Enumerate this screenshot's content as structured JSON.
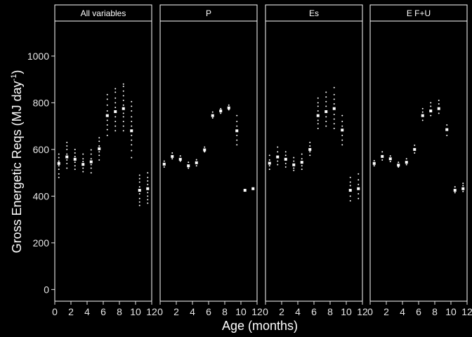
{
  "chart_data": {
    "type": "scatter",
    "xlabel": "Age (months)",
    "ylabel_main": "Gross Energetic Reqs (MJ day",
    "ylabel_sup": "-1",
    "ylabel_close": ")",
    "xlim": [
      0,
      12
    ],
    "ylim": [
      -50,
      1150
    ],
    "x_ticks": [
      0,
      2,
      4,
      6,
      8,
      10,
      12
    ],
    "y_ticks": [
      0,
      200,
      400,
      600,
      800,
      1000
    ],
    "colors": {
      "background": "#000000",
      "points": "#ffffff",
      "text": "#e6e6e6",
      "border": "#ffffff"
    },
    "panels": [
      {
        "label": "All variables",
        "series": [
          {
            "x": 0.5,
            "mean": 540,
            "values": [
              480,
              495,
              515,
              530,
              550,
              565,
              580
            ]
          },
          {
            "x": 1.5,
            "mean": 568,
            "values": [
              520,
              540,
              555,
              580,
              600,
              615,
              630
            ]
          },
          {
            "x": 2.5,
            "mean": 558,
            "values": [
              515,
              530,
              545,
              570,
              585,
              600
            ]
          },
          {
            "x": 3.5,
            "mean": 536,
            "values": [
              505,
              520,
              548,
              560,
              580
            ]
          },
          {
            "x": 4.5,
            "mean": 547,
            "values": [
              500,
              520,
              535,
              560,
              580,
              598
            ]
          },
          {
            "x": 5.5,
            "mean": 603,
            "values": [
              555,
              575,
              590,
              615,
              635,
              650
            ]
          },
          {
            "x": 6.5,
            "mean": 745,
            "values": [
              660,
              685,
              705,
              725,
              765,
              790,
              815,
              835
            ]
          },
          {
            "x": 7.5,
            "mean": 762,
            "values": [
              680,
              700,
              720,
              740,
              780,
              800,
              820,
              845,
              860
            ]
          },
          {
            "x": 8.5,
            "mean": 775,
            "values": [
              680,
              700,
              720,
              740,
              755,
              790,
              810,
              830,
              850,
              870,
              880
            ]
          },
          {
            "x": 9.5,
            "mean": 680,
            "values": [
              565,
              595,
              620,
              640,
              660,
              700,
              720,
              740,
              765,
              785,
              805
            ]
          },
          {
            "x": 10.5,
            "mean": 425,
            "values": [
              360,
              375,
              390,
              410,
              440,
              460,
              475,
              490
            ]
          },
          {
            "x": 11.5,
            "mean": 432,
            "values": [
              370,
              385,
              400,
              415,
              450,
              465,
              480,
              500
            ]
          }
        ]
      },
      {
        "label": "P",
        "series": [
          {
            "x": 0.5,
            "mean": 537,
            "values": [
              525,
              550
            ]
          },
          {
            "x": 1.5,
            "mean": 570,
            "values": [
              560,
              585
            ]
          },
          {
            "x": 2.5,
            "mean": 558,
            "values": [
              550,
              572
            ]
          },
          {
            "x": 3.5,
            "mean": 530,
            "values": [
              520,
              545
            ]
          },
          {
            "x": 4.5,
            "mean": 543,
            "values": [
              530,
              556
            ]
          },
          {
            "x": 5.5,
            "mean": 598,
            "values": [
              590,
              610
            ]
          },
          {
            "x": 6.5,
            "mean": 745,
            "values": [
              735,
              760
            ]
          },
          {
            "x": 7.5,
            "mean": 765,
            "values": [
              755,
              775
            ]
          },
          {
            "x": 8.5,
            "mean": 778,
            "values": [
              770,
              790
            ]
          },
          {
            "x": 9.5,
            "mean": 680,
            "values": [
              620,
              640,
              660,
              700,
              720,
              745
            ]
          },
          {
            "x": 10.5,
            "mean": 425,
            "values": []
          },
          {
            "x": 11.5,
            "mean": 432,
            "values": []
          }
        ]
      },
      {
        "label": "Es",
        "series": [
          {
            "x": 0.5,
            "mean": 541,
            "values": [
              515,
              530,
              555,
              575
            ]
          },
          {
            "x": 1.5,
            "mean": 568,
            "values": [
              535,
              550,
              590,
              610
            ]
          },
          {
            "x": 2.5,
            "mean": 558,
            "values": [
              525,
              540,
              575,
              590
            ]
          },
          {
            "x": 3.5,
            "mean": 534,
            "values": [
              510,
              520,
              550,
              565
            ]
          },
          {
            "x": 4.5,
            "mean": 545,
            "values": [
              515,
              530,
              560,
              580
            ]
          },
          {
            "x": 5.5,
            "mean": 600,
            "values": [
              575,
              590,
              615,
              630
            ]
          },
          {
            "x": 6.5,
            "mean": 745,
            "values": [
              690,
              710,
              725,
              765,
              785,
              800,
              820
            ]
          },
          {
            "x": 7.5,
            "mean": 762,
            "values": [
              700,
              720,
              740,
              785,
              805,
              825,
              845
            ]
          },
          {
            "x": 8.5,
            "mean": 775,
            "values": [
              690,
              710,
              730,
              750,
              795,
              815,
              835,
              865
            ]
          },
          {
            "x": 9.5,
            "mean": 683,
            "values": [
              620,
              640,
              660,
              700,
              720,
              745
            ]
          },
          {
            "x": 10.5,
            "mean": 425,
            "values": [
              380,
              400,
              445,
              460,
              480
            ]
          },
          {
            "x": 11.5,
            "mean": 432,
            "values": [
              390,
              410,
              450,
              470,
              495
            ]
          }
        ]
      },
      {
        "label": "E F+U",
        "series": [
          {
            "x": 0.5,
            "mean": 540,
            "values": [
              530,
              552
            ]
          },
          {
            "x": 1.5,
            "mean": 570,
            "values": [
              555,
              590
            ]
          },
          {
            "x": 2.5,
            "mean": 560,
            "values": [
              548,
              572
            ]
          },
          {
            "x": 3.5,
            "mean": 533,
            "values": [
              525,
              545
            ]
          },
          {
            "x": 4.5,
            "mean": 545,
            "values": [
              535,
              560
            ]
          },
          {
            "x": 5.5,
            "mean": 600,
            "values": [
              585,
              618
            ]
          },
          {
            "x": 6.5,
            "mean": 745,
            "values": [
              725,
              760,
              775
            ]
          },
          {
            "x": 7.5,
            "mean": 765,
            "values": [
              745,
              785,
              800
            ]
          },
          {
            "x": 8.5,
            "mean": 775,
            "values": [
              755,
              795,
              810
            ]
          },
          {
            "x": 9.5,
            "mean": 685,
            "values": [
              660,
              705
            ]
          },
          {
            "x": 10.5,
            "mean": 425,
            "values": [
              415,
              440
            ]
          },
          {
            "x": 11.5,
            "mean": 432,
            "values": [
              420,
              445,
              455
            ]
          }
        ]
      }
    ]
  }
}
